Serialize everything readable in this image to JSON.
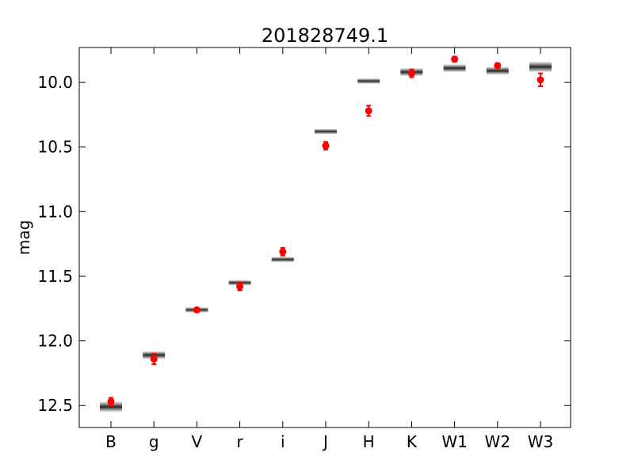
{
  "chart_data": {
    "type": "scatter",
    "title": "201828749.1",
    "xlabel": "",
    "ylabel": "mag",
    "y_inverted": true,
    "ylim": [
      12.67,
      9.73
    ],
    "yticks": [
      "10.0",
      "10.5",
      "11.0",
      "11.5",
      "12.0",
      "12.5"
    ],
    "categories": [
      "B",
      "g",
      "V",
      "r",
      "i",
      "J",
      "H",
      "K",
      "W1",
      "W2",
      "W3"
    ],
    "series": [
      {
        "marker": "red circle with error bars",
        "color": "#ff0000",
        "values": [
          12.47,
          12.14,
          11.76,
          11.58,
          11.31,
          10.49,
          10.22,
          9.93,
          9.82,
          9.87,
          9.98
        ],
        "errors": [
          0.03,
          0.04,
          0.01,
          0.03,
          0.03,
          0.03,
          0.04,
          0.03,
          0.02,
          0.02,
          0.05
        ]
      },
      {
        "marker": "gray model band",
        "color": "#000000",
        "values": [
          12.51,
          12.11,
          11.76,
          11.55,
          11.37,
          10.38,
          9.99,
          9.92,
          9.89,
          9.91,
          9.88
        ],
        "spread": [
          0.03,
          0.02,
          0.01,
          0.01,
          0.01,
          0.01,
          0.01,
          0.02,
          0.02,
          0.02,
          0.03
        ]
      }
    ],
    "grid": false,
    "legend": "none"
  }
}
